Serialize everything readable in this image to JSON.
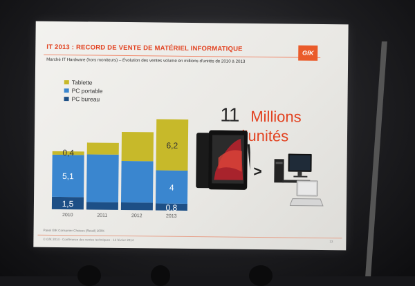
{
  "slide": {
    "title": "IT 2013 : RECORD DE VENTE DE MATÉRIEL INFORMATIQUE",
    "subtitle": "Marché IT Hardware (hors moniteurs) – Évolution des ventes volume en millions d'unités de 2010 à 2013",
    "logo_text": "GfK",
    "highlight_number": "11",
    "highlight_word": "Millions",
    "highlight_unit": "d'unités",
    "comparison_symbol": ">",
    "source": "Panel GfK Consumer Choices (Retail) 100%",
    "footer": "© GfK 2014 · Conférence des ventes techniques · 13 février 2014",
    "page_number": "13"
  },
  "colors": {
    "tablette": "#c7b92a",
    "pc_portable": "#3a86cf",
    "pc_bureau": "#1d4f86",
    "accent": "#e2411f"
  },
  "icons": [
    "tablet-device-icon",
    "desktop-computer-icon",
    "laptop-icon"
  ],
  "chart_data": {
    "type": "bar",
    "stacked": true,
    "categories": [
      "2010",
      "2011",
      "2012",
      "2013"
    ],
    "series": [
      {
        "name": "PC bureau",
        "values": [
          1.5,
          0.9,
          0.9,
          0.8
        ]
      },
      {
        "name": "PC portable",
        "values": [
          5.1,
          5.8,
          5.0,
          4
        ]
      },
      {
        "name": "Tablette",
        "values": [
          0.4,
          1.4,
          3.5,
          6.2
        ]
      }
    ],
    "data_labels": {
      "2010": {
        "PC bureau": "1,5",
        "PC portable": "5,1",
        "Tablette": "0,4"
      },
      "2013": {
        "PC bureau": "0,8",
        "PC portable": "4",
        "Tablette": "6,2"
      }
    },
    "legend": [
      "Tablette",
      "PC portable",
      "PC bureau"
    ],
    "legend_placement": "top-left",
    "ylim": [
      0,
      12
    ]
  }
}
